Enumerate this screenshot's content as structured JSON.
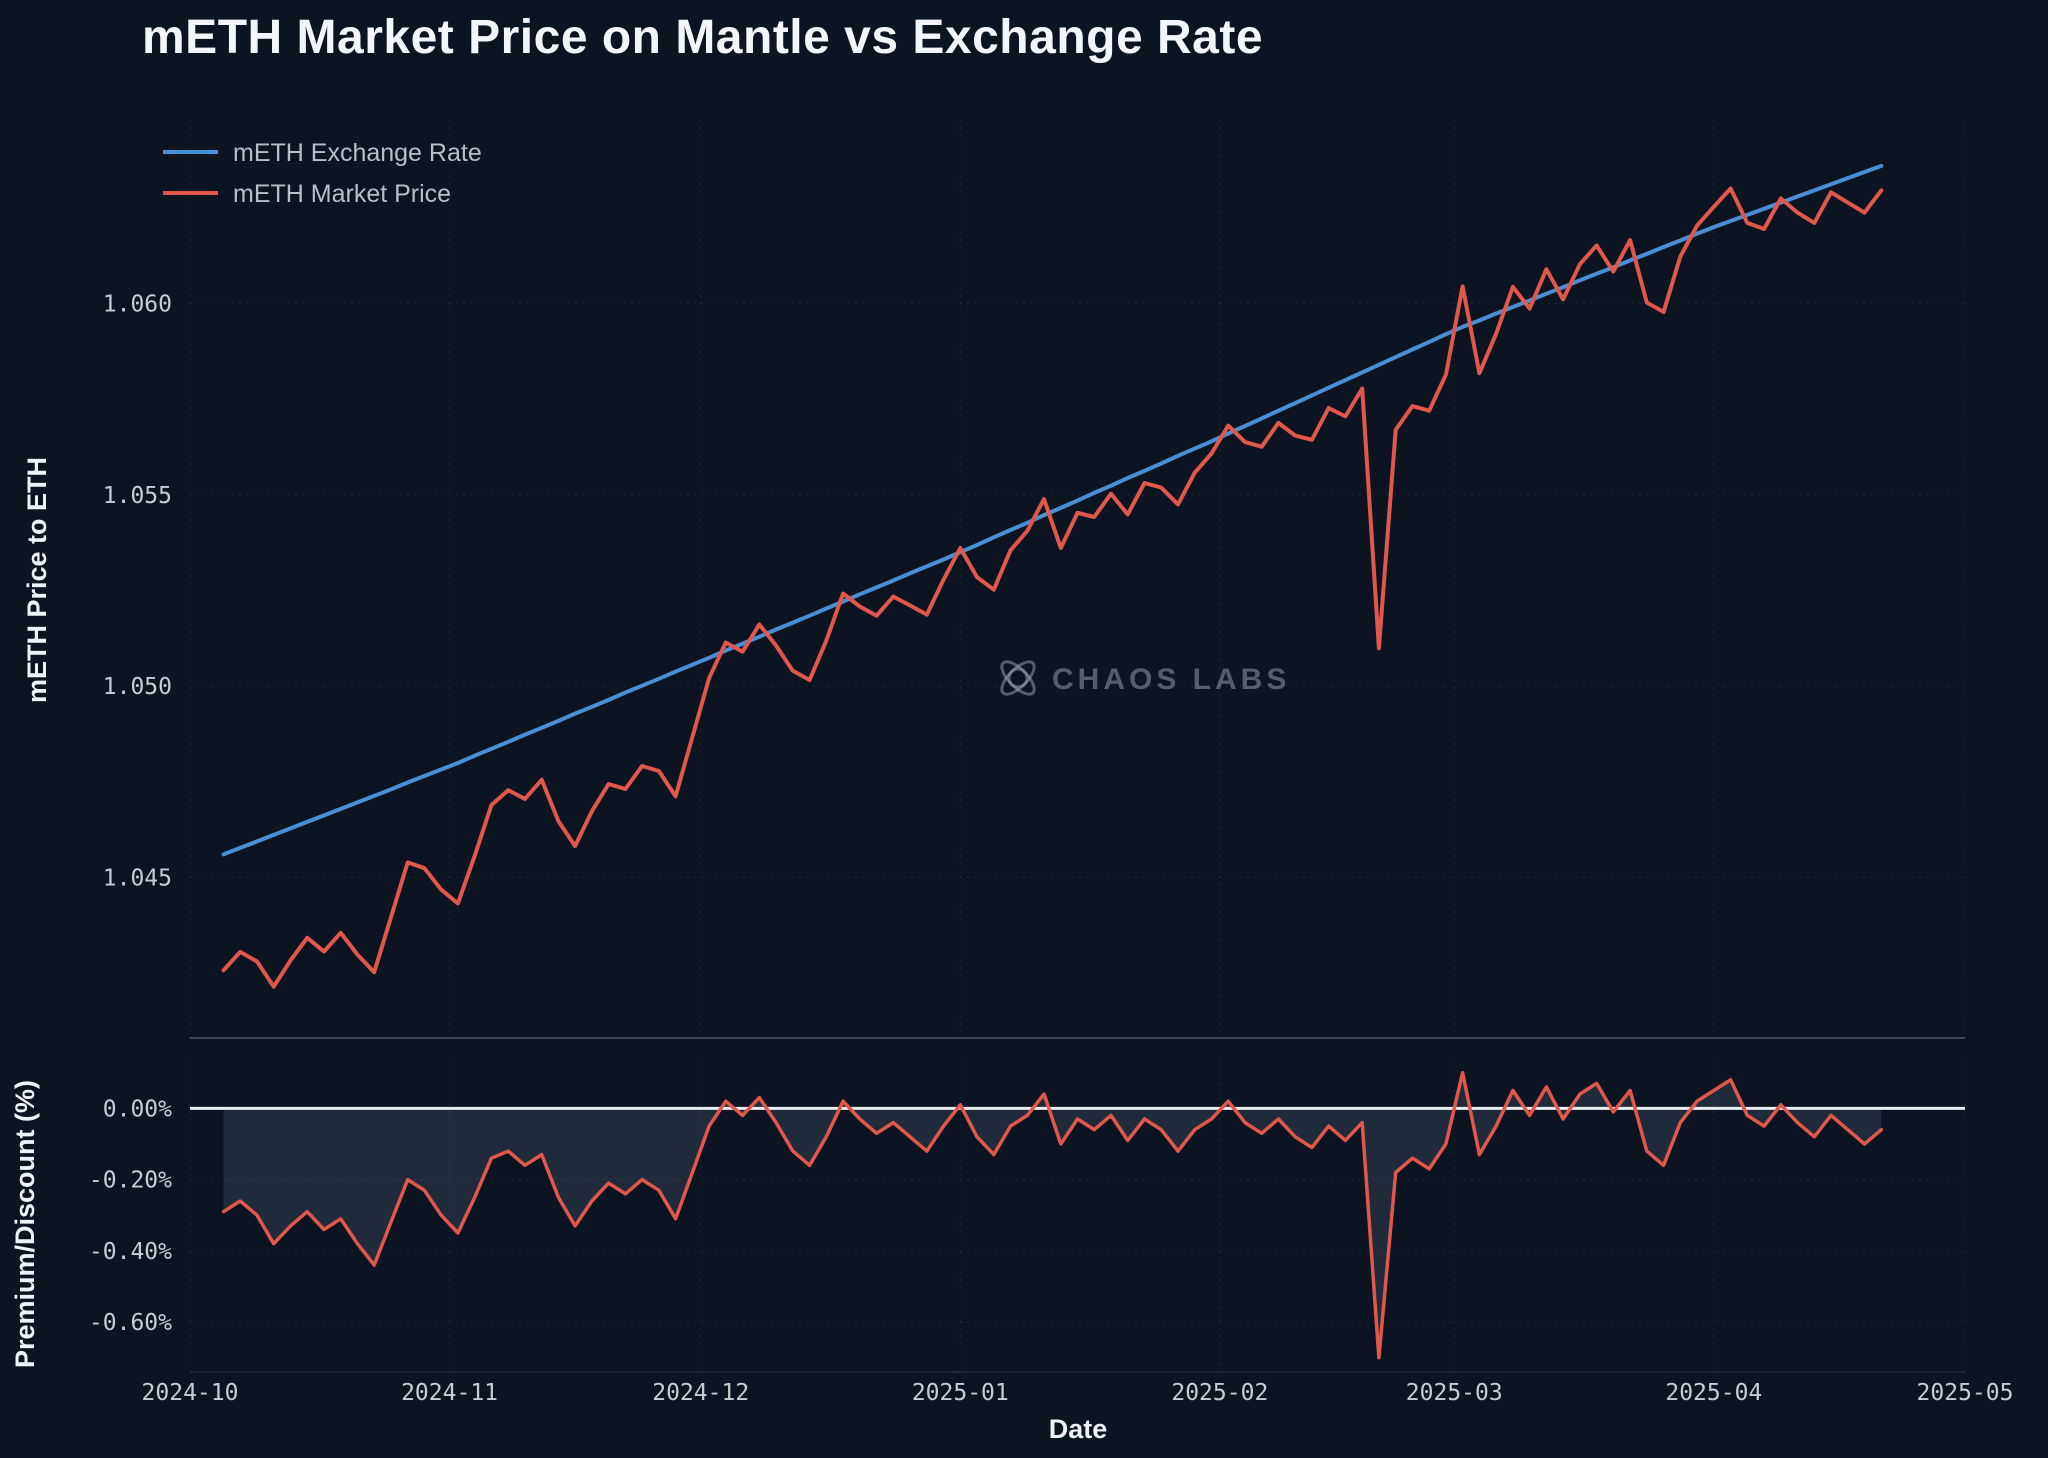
{
  "page": {
    "title": "mETH Market Price on Mantle vs Exchange Rate"
  },
  "watermark": {
    "label": "CHAOS LABS",
    "icon": "chaos-labs-atom-icon"
  },
  "colors": {
    "background": "#0d1421",
    "exchange_rate_line": "#4a8fd4",
    "market_price_line": "#e2574b",
    "zero_line": "#e9ecf1",
    "discount_fill": "rgba(130,160,195,0.16)",
    "grid": "rgba(148,163,184,0.14)",
    "panel_separator": "rgba(196,205,218,0.35)",
    "tick_text": "#c8ccd4",
    "title_text": "#f3f5f8"
  },
  "chart_data": {
    "type": "line",
    "title": "mETH Market Price on Mantle vs Exchange Rate",
    "xlabel": "Date",
    "legend_position": "top-left",
    "grid": true,
    "x": [
      "2024-10-05",
      "2024-10-07",
      "2024-10-09",
      "2024-10-11",
      "2024-10-13",
      "2024-10-15",
      "2024-10-17",
      "2024-10-19",
      "2024-10-21",
      "2024-10-23",
      "2024-10-25",
      "2024-10-27",
      "2024-10-29",
      "2024-10-31",
      "2024-11-02",
      "2024-11-04",
      "2024-11-06",
      "2024-11-08",
      "2024-11-10",
      "2024-11-12",
      "2024-11-14",
      "2024-11-16",
      "2024-11-18",
      "2024-11-20",
      "2024-11-22",
      "2024-11-24",
      "2024-11-26",
      "2024-11-28",
      "2024-11-30",
      "2024-12-02",
      "2024-12-04",
      "2024-12-06",
      "2024-12-08",
      "2024-12-10",
      "2024-12-12",
      "2024-12-14",
      "2024-12-16",
      "2024-12-18",
      "2024-12-20",
      "2024-12-22",
      "2024-12-24",
      "2024-12-26",
      "2024-12-28",
      "2024-12-30",
      "2025-01-01",
      "2025-01-03",
      "2025-01-05",
      "2025-01-07",
      "2025-01-09",
      "2025-01-11",
      "2025-01-13",
      "2025-01-15",
      "2025-01-17",
      "2025-01-19",
      "2025-01-21",
      "2025-01-23",
      "2025-01-25",
      "2025-01-27",
      "2025-01-29",
      "2025-01-31",
      "2025-02-02",
      "2025-02-04",
      "2025-02-06",
      "2025-02-08",
      "2025-02-10",
      "2025-02-12",
      "2025-02-14",
      "2025-02-16",
      "2025-02-18",
      "2025-02-20",
      "2025-02-22",
      "2025-02-24",
      "2025-02-26",
      "2025-02-28",
      "2025-03-02",
      "2025-03-04",
      "2025-03-06",
      "2025-03-08",
      "2025-03-10",
      "2025-03-12",
      "2025-03-14",
      "2025-03-16",
      "2025-03-18",
      "2025-03-20",
      "2025-03-22",
      "2025-03-24",
      "2025-03-26",
      "2025-03-28",
      "2025-03-30",
      "2025-04-01",
      "2025-04-03",
      "2025-04-05",
      "2025-04-07",
      "2025-04-09",
      "2025-04-11",
      "2025-04-13",
      "2025-04-15",
      "2025-04-17",
      "2025-04-19",
      "2025-04-21"
    ],
    "xtick_labels": [
      "2024-10",
      "2024-11",
      "2024-12",
      "2025-01",
      "2025-02",
      "2025-03",
      "2025-04",
      "2025-05"
    ],
    "xtick_dates": [
      "2024-10-01",
      "2024-11-01",
      "2024-12-01",
      "2025-01-01",
      "2025-02-01",
      "2025-03-01",
      "2025-04-01",
      "2025-05-01"
    ],
    "panels": [
      {
        "name": "price-panel",
        "ylabel": "mETH Price to ETH",
        "ylim": [
          1.0408,
          1.0648
        ],
        "yticks": [
          1.045,
          1.05,
          1.055,
          1.06
        ],
        "ytick_labels": [
          "1.045",
          "1.050",
          "1.055",
          "1.060"
        ],
        "series": [
          {
            "name": "mETH Exchange Rate",
            "color": "#4a8fd4",
            "values": [
              1.0456,
              1.04577,
              1.04594,
              1.04611,
              1.04628,
              1.04645,
              1.04662,
              1.04679,
              1.04696,
              1.04713,
              1.0473,
              1.04748,
              1.04765,
              1.04782,
              1.04799,
              1.04818,
              1.04836,
              1.04854,
              1.04873,
              1.04891,
              1.04909,
              1.04928,
              1.04946,
              1.04964,
              1.04983,
              1.05001,
              1.05019,
              1.05038,
              1.05056,
              1.05074,
              1.05093,
              1.05111,
              1.05129,
              1.05148,
              1.05166,
              1.05184,
              1.05203,
              1.05221,
              1.0524,
              1.05258,
              1.05276,
              1.05295,
              1.05313,
              1.05331,
              1.0535,
              1.05369,
              1.05389,
              1.05408,
              1.05427,
              1.05447,
              1.05466,
              1.05485,
              1.05505,
              1.05524,
              1.05544,
              1.05563,
              1.05582,
              1.05602,
              1.05621,
              1.0564,
              1.0566,
              1.0568,
              1.057,
              1.0572,
              1.0574,
              1.0576,
              1.0578,
              1.058,
              1.0582,
              1.0584,
              1.0586,
              1.0588,
              1.059,
              1.0592,
              1.05939,
              1.05956,
              1.05974,
              1.05991,
              1.06008,
              1.06026,
              1.06043,
              1.06061,
              1.06078,
              1.06095,
              1.06113,
              1.0613,
              1.06148,
              1.06165,
              1.06183,
              1.062,
              1.06216,
              1.06232,
              1.06248,
              1.06264,
              1.0628,
              1.06296,
              1.06312,
              1.06328,
              1.06344,
              1.0636
            ]
          },
          {
            "name": "mETH Market Price",
            "color": "#e2574b",
            "values": [
              1.04257,
              1.04305,
              1.0428,
              1.04214,
              1.04283,
              1.04342,
              1.04306,
              1.04355,
              1.04298,
              1.04252,
              1.04395,
              1.04539,
              1.04524,
              1.04468,
              1.04432,
              1.04556,
              1.04689,
              1.04728,
              1.04705,
              1.04755,
              1.04647,
              1.04582,
              1.04673,
              1.04744,
              1.04731,
              1.04791,
              1.04778,
              1.04712,
              1.04867,
              1.05021,
              1.05114,
              1.0509,
              1.05161,
              1.05106,
              1.0504,
              1.05016,
              1.05119,
              1.05242,
              1.05208,
              1.05184,
              1.05234,
              1.05211,
              1.05187,
              1.05278,
              1.05361,
              1.05285,
              1.05252,
              1.05355,
              1.05406,
              1.05489,
              1.05361,
              1.05453,
              1.05442,
              1.05503,
              1.05449,
              1.05531,
              1.05519,
              1.05475,
              1.05558,
              1.05608,
              1.05681,
              1.05638,
              1.05626,
              1.05688,
              1.05655,
              1.05644,
              1.05727,
              1.05705,
              1.05778,
              1.05099,
              1.0567,
              1.05732,
              1.0572,
              1.05814,
              1.06045,
              1.05818,
              1.05921,
              1.06044,
              1.05987,
              1.0609,
              1.06011,
              1.06103,
              1.06152,
              1.06084,
              1.06166,
              1.06003,
              1.05978,
              1.06123,
              1.06204,
              1.06253,
              1.06301,
              1.06211,
              1.06195,
              1.06275,
              1.06238,
              1.06211,
              1.06291,
              1.06264,
              1.06238,
              1.06296
            ]
          }
        ]
      },
      {
        "name": "premium-panel",
        "ylabel": "Premium/Discount (%)",
        "ylim": [
          -0.74,
          0.13
        ],
        "yticks": [
          0.0,
          -0.2,
          -0.4,
          -0.6
        ],
        "ytick_labels": [
          "0.00%",
          "-0.20%",
          "-0.40%",
          "-0.60%"
        ],
        "series": [
          {
            "name": "Premium/Discount",
            "color": "#e2574b",
            "values": [
              -0.29,
              -0.26,
              -0.3,
              -0.38,
              -0.33,
              -0.29,
              -0.34,
              -0.31,
              -0.38,
              -0.44,
              -0.32,
              -0.2,
              -0.23,
              -0.3,
              -0.35,
              -0.25,
              -0.14,
              -0.12,
              -0.16,
              -0.13,
              -0.25,
              -0.33,
              -0.26,
              -0.21,
              -0.24,
              -0.2,
              -0.23,
              -0.31,
              -0.18,
              -0.05,
              0.02,
              -0.02,
              0.03,
              -0.04,
              -0.12,
              -0.16,
              -0.08,
              0.02,
              -0.03,
              -0.07,
              -0.04,
              -0.08,
              -0.12,
              -0.05,
              0.01,
              -0.08,
              -0.13,
              -0.05,
              -0.02,
              0.04,
              -0.1,
              -0.03,
              -0.06,
              -0.02,
              -0.09,
              -0.03,
              -0.06,
              -0.12,
              -0.06,
              -0.03,
              0.02,
              -0.04,
              -0.07,
              -0.03,
              -0.08,
              -0.11,
              -0.05,
              -0.09,
              -0.04,
              -0.7,
              -0.18,
              -0.14,
              -0.17,
              -0.1,
              0.1,
              -0.13,
              -0.05,
              0.05,
              -0.02,
              0.06,
              -0.03,
              0.04,
              0.07,
              -0.01,
              0.05,
              -0.12,
              -0.16,
              -0.04,
              0.02,
              0.05,
              0.08,
              -0.02,
              -0.05,
              0.01,
              -0.04,
              -0.08,
              -0.02,
              -0.06,
              -0.1,
              -0.06
            ]
          }
        ]
      }
    ]
  }
}
